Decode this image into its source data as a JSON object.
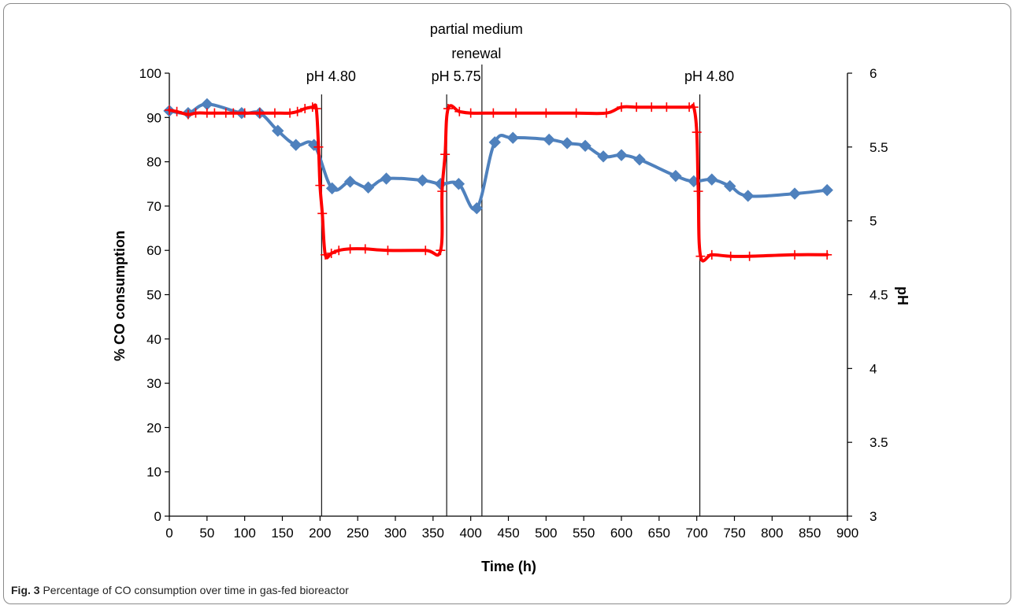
{
  "caption": {
    "label": "Fig. 3",
    "text": "Percentage of CO consumption over time in gas-fed bioreactor"
  },
  "chart_data": {
    "type": "line",
    "title": "",
    "xlabel": "Time (h)",
    "ylabel": "% CO consumption",
    "y2label": "pH",
    "xlim": [
      0,
      900
    ],
    "ylim": [
      0,
      100
    ],
    "y2lim": [
      3,
      6
    ],
    "xticks": [
      0,
      50,
      100,
      150,
      200,
      250,
      300,
      350,
      400,
      450,
      500,
      550,
      600,
      650,
      700,
      750,
      800,
      850,
      900
    ],
    "yticks": [
      0,
      10,
      20,
      30,
      40,
      50,
      60,
      70,
      80,
      90,
      100
    ],
    "y2ticks": [
      "3",
      "3.5",
      "4",
      "4.5",
      "5",
      "5.5",
      "6"
    ],
    "grid": false,
    "legend": "none",
    "series": [
      {
        "axis": "left",
        "marker": "diamond",
        "color": "#4f81bd",
        "x": [
          0,
          25,
          50,
          96,
          120,
          144,
          168,
          192,
          216,
          240,
          264,
          288,
          336,
          360,
          384,
          408,
          432,
          456,
          504,
          528,
          552,
          576,
          600,
          624,
          672,
          696,
          720,
          744,
          768,
          830,
          873
        ],
        "y": [
          91.5,
          91,
          93,
          91,
          91,
          87,
          83.8,
          83.8,
          74,
          75.5,
          74.2,
          76.2,
          75.8,
          75,
          75,
          69.5,
          84.4,
          85.4,
          85,
          84.2,
          83.6,
          81.2,
          81.5,
          80.5,
          76.8,
          75.6,
          76,
          74.5,
          72.3,
          72.8,
          73.6
        ]
      },
      {
        "axis": "right",
        "marker": "plus",
        "color": "#ff0000",
        "x": [
          0,
          10,
          25,
          35,
          50,
          60,
          75,
          85,
          100,
          120,
          140,
          160,
          170,
          180,
          190,
          195,
          198,
          200,
          203,
          207,
          215,
          225,
          240,
          260,
          290,
          340,
          360,
          362,
          366,
          370,
          385,
          400,
          430,
          460,
          500,
          540,
          580,
          600,
          620,
          640,
          660,
          690,
          696,
          700,
          702,
          705,
          720,
          745,
          770,
          830,
          873
        ],
        "y": [
          5.75,
          5.74,
          5.72,
          5.73,
          5.73,
          5.73,
          5.73,
          5.73,
          5.73,
          5.73,
          5.73,
          5.73,
          5.74,
          5.76,
          5.77,
          5.76,
          5.5,
          5.24,
          5.05,
          4.77,
          4.78,
          4.8,
          4.81,
          4.81,
          4.8,
          4.8,
          4.8,
          5.2,
          5.45,
          5.76,
          5.74,
          5.73,
          5.73,
          5.73,
          5.73,
          5.73,
          5.73,
          5.77,
          5.77,
          5.77,
          5.77,
          5.77,
          5.77,
          5.6,
          5.2,
          4.76,
          4.77,
          4.76,
          4.76,
          4.77,
          4.77
        ]
      }
    ],
    "annotations": [
      {
        "text": "pH 4.80",
        "x": 200
      },
      {
        "text": "pH 5.75",
        "x": 366
      },
      {
        "text": "partial medium renewal",
        "line1": "partial medium",
        "line2": "renewal",
        "x": 418
      },
      {
        "text": "pH 4.80",
        "x": 702
      }
    ]
  }
}
